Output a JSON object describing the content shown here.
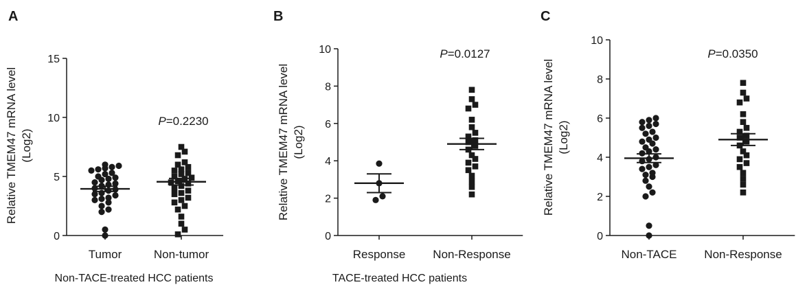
{
  "chart_data": [
    {
      "type": "scatter",
      "panel": "A",
      "ylabel_line1": "Relative TMEM47 mRNA  level",
      "ylabel_line2": "(Log2)",
      "xlabel": "Non-TACE-treated HCC patients",
      "ylim": [
        0,
        15
      ],
      "yticks": [
        0,
        5,
        10,
        15
      ],
      "annotation": {
        "p": "P",
        "value": "=0.2230"
      },
      "groups": [
        {
          "name": "Tumor",
          "marker": "circle",
          "mean": 3.95,
          "sem": 0.22,
          "values": [
            6.0,
            5.8,
            5.9,
            5.7,
            5.6,
            5.5,
            5.3,
            5.2,
            5.0,
            4.9,
            4.8,
            4.7,
            4.5,
            4.4,
            4.3,
            4.2,
            4.0,
            3.9,
            3.8,
            3.6,
            3.5,
            3.4,
            3.2,
            3.1,
            3.0,
            2.8,
            2.5,
            2.2,
            2.0,
            0.5,
            0.0
          ]
        },
        {
          "name": "Non-tumor",
          "marker": "square",
          "mean": 4.55,
          "sem": 0.28,
          "values": [
            7.5,
            7.1,
            6.8,
            6.2,
            6.0,
            5.8,
            5.6,
            5.5,
            5.3,
            5.2,
            5.0,
            4.9,
            4.8,
            4.6,
            4.5,
            4.4,
            4.2,
            4.0,
            3.8,
            3.6,
            3.5,
            3.2,
            3.0,
            2.8,
            2.5,
            2.2,
            1.6,
            1.0,
            0.5,
            0.1
          ]
        }
      ]
    },
    {
      "type": "scatter",
      "panel": "B",
      "ylabel_line1": "Relative TMEM47 mRNA  level",
      "ylabel_line2": "(Log2)",
      "xlabel": "TACE-treated HCC patients",
      "ylim": [
        0,
        10
      ],
      "yticks": [
        0,
        2,
        4,
        6,
        8,
        10
      ],
      "annotation": {
        "p": "P",
        "value": "=0.0127"
      },
      "groups": [
        {
          "name": "Response",
          "marker": "circle",
          "mean": 2.8,
          "sem": 0.5,
          "values": [
            3.85,
            2.8,
            2.1,
            1.9
          ]
        },
        {
          "name": "Non-Response",
          "marker": "square",
          "mean": 4.9,
          "sem": 0.3,
          "values": [
            7.8,
            7.3,
            7.0,
            6.8,
            6.2,
            5.8,
            5.5,
            5.3,
            5.1,
            5.0,
            4.8,
            4.6,
            4.3,
            4.1,
            3.9,
            3.7,
            3.5,
            3.2,
            2.9,
            2.6,
            2.2
          ]
        }
      ]
    },
    {
      "type": "scatter",
      "panel": "C",
      "ylabel_line1": "Relative TMEM47 mRNA  level",
      "ylabel_line2": "(Log2)",
      "xlabel": "",
      "ylim": [
        0,
        10
      ],
      "yticks": [
        0,
        2,
        4,
        6,
        8,
        10
      ],
      "annotation": {
        "p": "P",
        "value": "=0.0350"
      },
      "groups": [
        {
          "name": "Non-TACE",
          "marker": "circle",
          "mean": 3.95,
          "sem": 0.22,
          "values": [
            6.0,
            5.8,
            5.9,
            5.7,
            5.6,
            5.5,
            5.3,
            5.2,
            5.0,
            4.9,
            4.8,
            4.7,
            4.5,
            4.4,
            4.3,
            4.2,
            4.0,
            3.9,
            3.8,
            3.6,
            3.5,
            3.4,
            3.2,
            3.1,
            3.0,
            2.8,
            2.5,
            2.2,
            2.0,
            0.5,
            0.0
          ]
        },
        {
          "name": "Non-Response",
          "marker": "square",
          "mean": 4.9,
          "sem": 0.3,
          "values": [
            7.8,
            7.3,
            7.0,
            6.8,
            6.2,
            5.8,
            5.5,
            5.3,
            5.1,
            5.0,
            4.8,
            4.6,
            4.3,
            4.1,
            3.9,
            3.7,
            3.5,
            3.2,
            2.9,
            2.6,
            2.2
          ]
        }
      ]
    }
  ]
}
